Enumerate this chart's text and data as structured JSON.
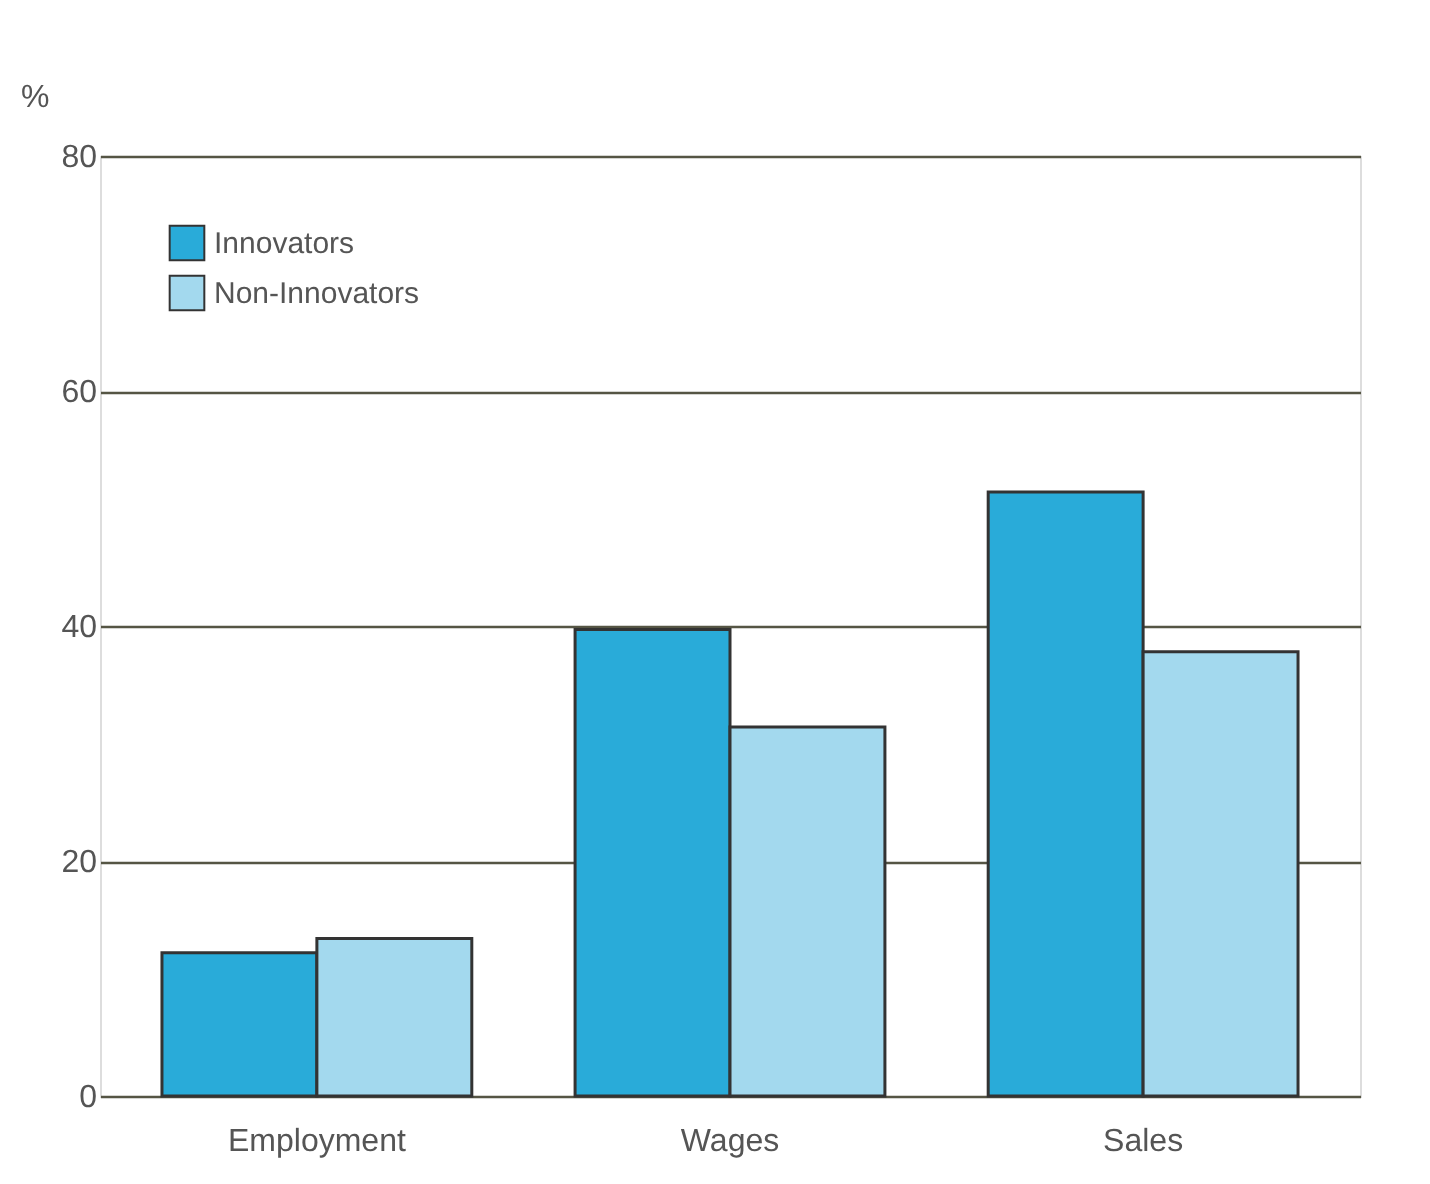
{
  "chart_data": {
    "type": "bar",
    "ylabel": "%",
    "categories": [
      "Employment",
      "Wages",
      "Sales"
    ],
    "series": [
      {
        "name": "Innovators",
        "color": "#29abd9",
        "values": [
          12.2,
          39.7,
          51.4
        ]
      },
      {
        "name": "Non-Innovators",
        "color": "#a3d9ee",
        "values": [
          13.4,
          31.4,
          37.8
        ]
      }
    ],
    "ylim": [
      0,
      80
    ],
    "yticks": [
      0,
      20,
      40,
      60,
      80
    ],
    "grid": "y",
    "legend": "top left"
  }
}
